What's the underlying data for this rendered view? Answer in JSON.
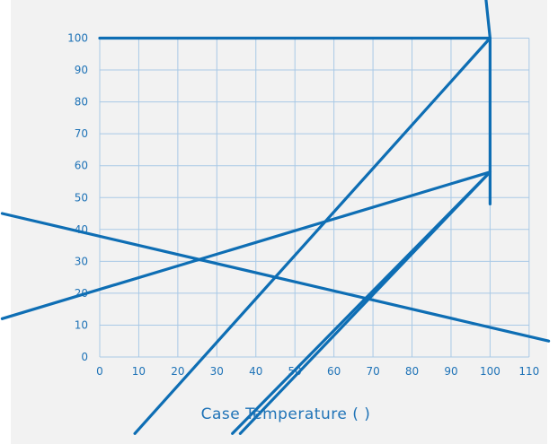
{
  "chart_data": {
    "type": "line",
    "title": "",
    "xlabel": "Case Temperature (   )",
    "ylabel": "",
    "xlim": [
      0,
      110
    ],
    "ylim": [
      0,
      100
    ],
    "grid": true,
    "x_ticks": [
      "0",
      "10",
      "20",
      "30",
      "40",
      "50",
      "60",
      "70",
      "80",
      "90",
      "100",
      "110"
    ],
    "y_ticks": [
      "0",
      "10",
      "20",
      "30",
      "40",
      "50",
      "60",
      "70",
      "80",
      "90",
      "100"
    ],
    "series": [
      {
        "x": [
          0,
          100
        ],
        "y": [
          100,
          100
        ]
      },
      {
        "x": [
          100,
          100
        ],
        "y": [
          100,
          48
        ]
      },
      {
        "x": [
          95,
          100
        ],
        "y": [
          158,
          100
        ]
      },
      {
        "x": [
          9,
          100
        ],
        "y": [
          -24,
          100
        ]
      },
      {
        "x": [
          -25,
          100
        ],
        "y": [
          12,
          58
        ]
      },
      {
        "x": [
          -25,
          115
        ],
        "y": [
          45,
          5
        ]
      },
      {
        "x": [
          34,
          100
        ],
        "y": [
          -24,
          58
        ]
      },
      {
        "x": [
          36,
          100
        ],
        "y": [
          -24,
          58
        ]
      }
    ],
    "colors": {
      "line": "#0e6eb4",
      "grid": "#a9c9e6",
      "text": "#1f73b7",
      "panel": "#f2f2f2"
    }
  }
}
